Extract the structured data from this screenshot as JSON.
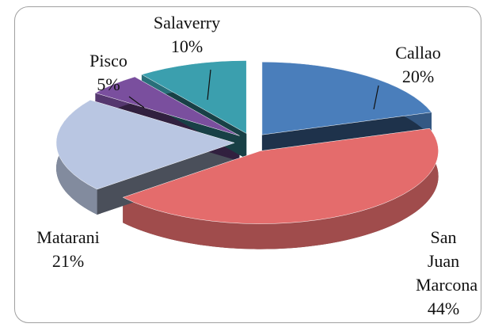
{
  "chart_data": {
    "type": "pie",
    "categories": [
      "Callao",
      "San Juan Marcona",
      "Matarani",
      "Pisco",
      "Salaverry"
    ],
    "values": [
      20,
      44,
      21,
      5,
      10
    ],
    "value_labels": [
      "20%",
      "44%",
      "21%",
      "5%",
      "10%"
    ],
    "colors": [
      "#4a7ebb",
      "#e46c6c",
      "#b9c6e2",
      "#7a4f9e",
      "#3b9fae"
    ]
  }
}
